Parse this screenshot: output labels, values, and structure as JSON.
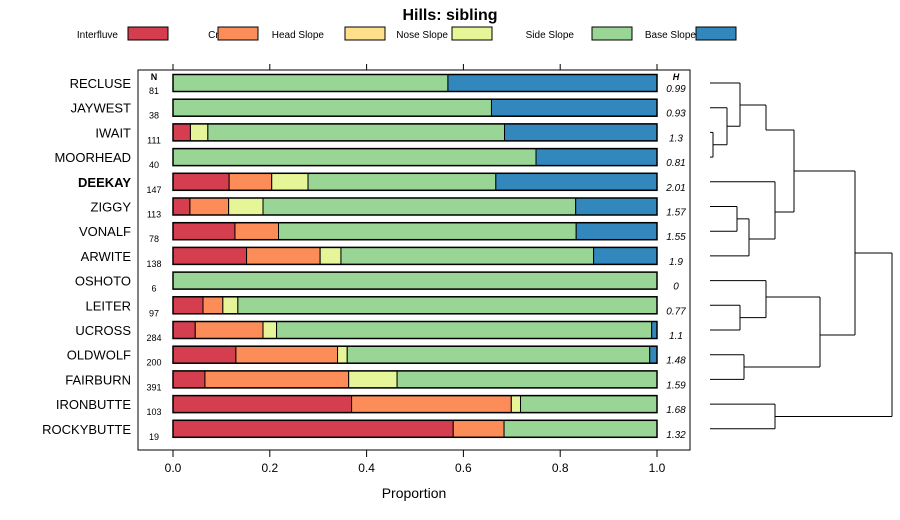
{
  "chart_data": {
    "type": "bar",
    "stacked": true,
    "orientation": "horizontal",
    "title": "Hills: sibling",
    "xlabel": "Proportion",
    "ylabel": "",
    "xlim": [
      0,
      1
    ],
    "xticks": [
      "0.0",
      "0.2",
      "0.4",
      "0.6",
      "0.8",
      "1.0"
    ],
    "n_header": "N",
    "h_header": "H",
    "legend_position": "top",
    "series": [
      {
        "name": "Interfluve",
        "color": "#d53e4f"
      },
      {
        "name": "Crest",
        "color": "#fc8d59"
      },
      {
        "name": "Head Slope",
        "color": "#fee08b"
      },
      {
        "name": "Nose Slope",
        "color": "#e6f598"
      },
      {
        "name": "Side Slope",
        "color": "#99d594"
      },
      {
        "name": "Base Slope",
        "color": "#3288bd"
      }
    ],
    "rows": [
      {
        "label": "RECLUSE",
        "n": "81",
        "h": "0.99",
        "bold": false,
        "values": [
          0,
          0,
          0,
          0,
          0.568,
          0.432
        ]
      },
      {
        "label": "JAYWEST",
        "n": "38",
        "h": "0.93",
        "bold": false,
        "values": [
          0,
          0,
          0,
          0,
          0.658,
          0.342
        ]
      },
      {
        "label": "IWAIT",
        "n": "111",
        "h": "1.3",
        "bold": false,
        "values": [
          0.036,
          0,
          0,
          0.036,
          0.613,
          0.315
        ]
      },
      {
        "label": "MOORHEAD",
        "n": "40",
        "h": "0.81",
        "bold": false,
        "values": [
          0,
          0,
          0,
          0,
          0.75,
          0.25
        ]
      },
      {
        "label": "DEEKAY",
        "n": "147",
        "h": "2.01",
        "bold": true,
        "values": [
          0.116,
          0.088,
          0,
          0.075,
          0.388,
          0.333
        ]
      },
      {
        "label": "ZIGGY",
        "n": "113",
        "h": "1.57",
        "bold": false,
        "values": [
          0.035,
          0.08,
          0,
          0.071,
          0.646,
          0.168
        ]
      },
      {
        "label": "VONALF",
        "n": "78",
        "h": "1.55",
        "bold": false,
        "values": [
          0.128,
          0.09,
          0,
          0,
          0.615,
          0.167
        ]
      },
      {
        "label": "ARWITE",
        "n": "138",
        "h": "1.9",
        "bold": false,
        "values": [
          0.152,
          0.152,
          0,
          0.043,
          0.522,
          0.131
        ]
      },
      {
        "label": "OSHOTO",
        "n": "6",
        "h": "0",
        "bold": false,
        "values": [
          0,
          0,
          0,
          0,
          1.0,
          0
        ]
      },
      {
        "label": "LEITER",
        "n": "97",
        "h": "0.77",
        "bold": false,
        "values": [
          0.062,
          0.041,
          0,
          0.031,
          0.866,
          0
        ]
      },
      {
        "label": "UCROSS",
        "n": "284",
        "h": "1.1",
        "bold": false,
        "values": [
          0.046,
          0.14,
          0,
          0.028,
          0.775,
          0.011
        ]
      },
      {
        "label": "OLDWOLF",
        "n": "200",
        "h": "1.48",
        "bold": false,
        "values": [
          0.13,
          0.21,
          0,
          0.02,
          0.625,
          0.015
        ]
      },
      {
        "label": "FAIRBURN",
        "n": "391",
        "h": "1.59",
        "bold": false,
        "values": [
          0.066,
          0.297,
          0,
          0.1,
          0.537,
          0
        ]
      },
      {
        "label": "IRONBUTTE",
        "n": "103",
        "h": "1.68",
        "bold": false,
        "values": [
          0.369,
          0.33,
          0,
          0.019,
          0.282,
          0
        ]
      },
      {
        "label": "ROCKYBUTTE",
        "n": "19",
        "h": "1.32",
        "bold": false,
        "values": [
          0.579,
          0.105,
          0,
          0,
          0.316,
          0
        ]
      }
    ]
  }
}
